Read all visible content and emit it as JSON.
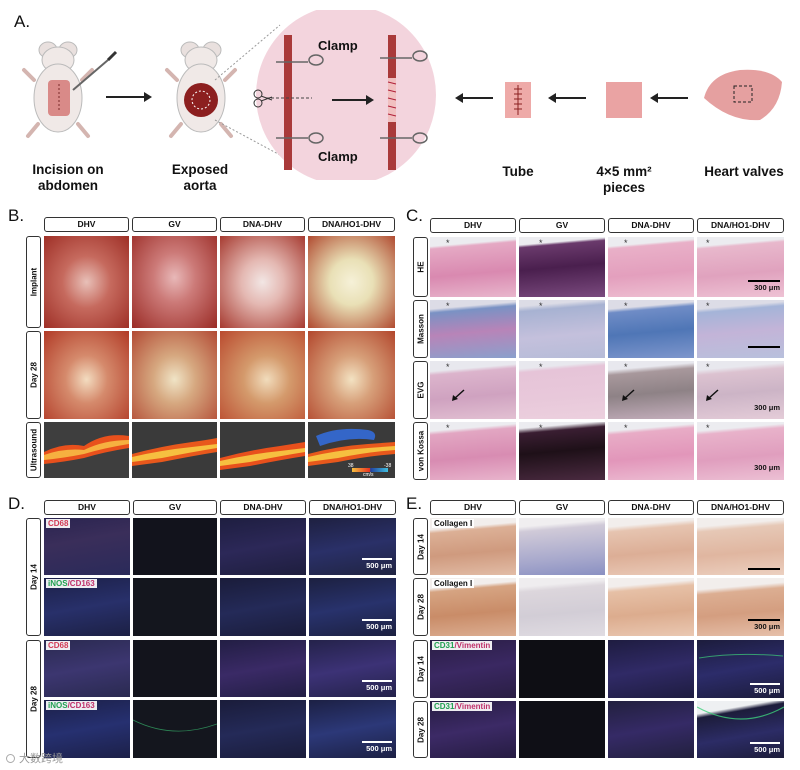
{
  "panels": {
    "a": "A.",
    "b": "B.",
    "c": "C.",
    "d": "D.",
    "e": "E."
  },
  "panel_a": {
    "step1": "Incision on\nabdomen",
    "step2": "Exposed\naorta",
    "clamp_top": "Clamp",
    "clamp_bottom": "Clamp",
    "tube": "Tube",
    "pieces": "4×5 mm²\npieces",
    "valves": "Heart valves"
  },
  "columns": [
    "DHV",
    "GV",
    "DNA-DHV",
    "DNA/HO1-DHV"
  ],
  "panel_b": {
    "rows": [
      "Implant",
      "Day 28",
      "Ultrasound"
    ],
    "colorbar_left": "38",
    "colorbar_right": "-38",
    "colorbar_unit": "cm/s"
  },
  "panel_c": {
    "rows": [
      "HE",
      "Masson",
      "EVG",
      "von Kossa"
    ],
    "scale": "300 μm",
    "star": "*"
  },
  "panel_d": {
    "groups": [
      "Day 14",
      "Day 28"
    ],
    "stain1": "CD68",
    "stain2a": "iNOS",
    "stain2b": "/CD163",
    "scale": "500 μm"
  },
  "panel_e": {
    "groups": [
      "Day 14",
      "Day 28",
      "Day 14",
      "Day 28"
    ],
    "collagen": "Collagen I",
    "cd31": "CD31",
    "vimentin": "/Vimentin",
    "scale300": "300 μm",
    "scale500": "500 μm"
  },
  "watermark": "大数跨境",
  "colors": {
    "tissue_red": "#b83a2e",
    "he_pink": "#e2a4bf",
    "gv_purple": "#5a2a5c",
    "masson_blue": "#5b7fb6",
    "fluor_bg": "#1b1d3a",
    "cd68_red": "#e0405a",
    "inos_green": "#3dd07a",
    "collagen_brown": "#d9a98e"
  }
}
